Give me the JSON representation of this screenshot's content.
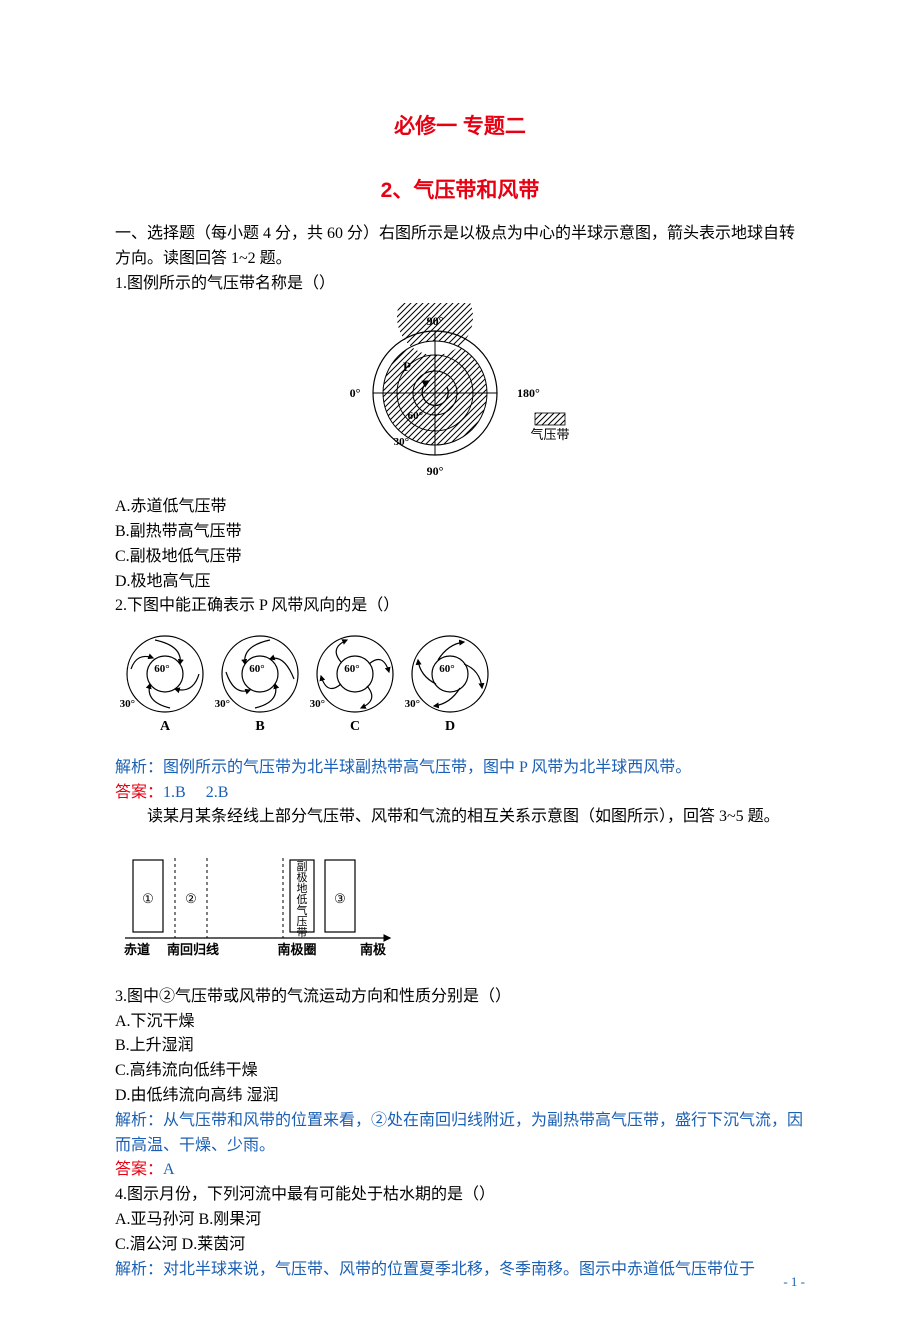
{
  "titles": {
    "main": "必修一  专题二",
    "sub": "2、气压带和风带"
  },
  "intro": "一、选择题（每小题 4 分，共 60 分）右图所示是以极点为中心的半球示意图，箭头表示地球自转方向。读图回答 1~2 题。",
  "q1": {
    "stem": "1.图例所示的气压带名称是（）",
    "opts": [
      "A.赤道低气压带",
      "B.副热带高气压带",
      "C.副极地低气压带",
      "D.极地高气压"
    ]
  },
  "fig1": {
    "labels": {
      "top": "90°",
      "left": "0°",
      "right": "180°",
      "bottom": "90°",
      "r60": "60°",
      "r30": "30°",
      "P": "P",
      "legend": "气压带"
    },
    "colors": {
      "stroke": "#000",
      "text": "#000"
    }
  },
  "q2": {
    "stem": "2.下图中能正确表示 P 风带风向的是（）"
  },
  "fig2": {
    "items": [
      {
        "cap": "A",
        "r60": "60°",
        "r30": "30°",
        "mode": "A"
      },
      {
        "cap": "B",
        "r60": "60°",
        "r30": "30°",
        "mode": "B"
      },
      {
        "cap": "C",
        "r60": "60°",
        "r30": "30°",
        "mode": "C"
      },
      {
        "cap": "D",
        "r60": "60°",
        "r30": "30°",
        "mode": "D"
      }
    ]
  },
  "q12_analysis": "解析：图例所示的气压带为北半球副热带高气压带，图中 P 风带为北半球西风带。",
  "q12_answer_label": "答案：",
  "q12_answer_val": "1.B     2.B",
  "q35_intro": "读某月某条经线上部分气压带、风带和气流的相互关系示意图（如图所示），回答 3~5 题。",
  "fig3": {
    "box3_text": "副极地低气压带",
    "circles": [
      "①",
      "②",
      "③"
    ],
    "axis": [
      "赤道",
      "南回归线",
      "南极圈",
      "南极"
    ]
  },
  "q3": {
    "stem": "3.图中②气压带或风带的气流运动方向和性质分别是（）",
    "opts": [
      "A.下沉干燥",
      "B.上升湿润",
      "C.高纬流向低纬干燥",
      "D.由低纬流向高纬 湿润"
    ],
    "analysis": "解析：从气压带和风带的位置来看，②处在南回归线附近，为副热带高气压带，盛行下沉气流，因而高温、干燥、少雨。",
    "answer_label": "答案：",
    "answer_val": "A"
  },
  "q4": {
    "stem": "4.图示月份，下列河流中最有可能处于枯水期的是（）",
    "opts_row1": "A.亚马孙河 B.刚果河",
    "opts_row2": "C.湄公河 D.莱茵河",
    "analysis": "解析：对北半球来说，气压带、风带的位置夏季北移，冬季南移。图示中赤道低气压带位于"
  },
  "page_number": "- 1 -",
  "colors": {
    "red": "#e60012",
    "blue": "#1a5fb4",
    "black": "#000000",
    "bg": "#ffffff"
  }
}
